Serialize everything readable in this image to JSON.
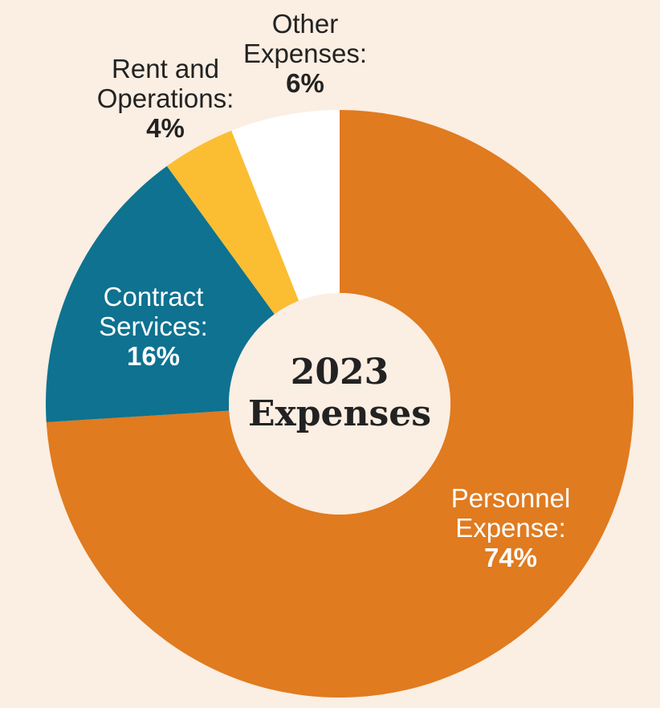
{
  "chart_data": {
    "type": "pie",
    "title_lines": [
      "2023",
      "Expenses"
    ],
    "slices": [
      {
        "label_lines": [
          "Personnel",
          "Expense:"
        ],
        "value": 74,
        "value_label": "74%",
        "color": "#e07b1f",
        "label_color": "#ffffff"
      },
      {
        "label_lines": [
          "Contract",
          "Services:"
        ],
        "value": 16,
        "value_label": "16%",
        "color": "#0e7290",
        "label_color": "#ffffff"
      },
      {
        "label_lines": [
          "Rent and",
          "Operations:"
        ],
        "value": 4,
        "value_label": "4%",
        "color": "#fbbd32",
        "label_color": "#222222"
      },
      {
        "label_lines": [
          "Other",
          "Expenses:"
        ],
        "value": 6,
        "value_label": "6%",
        "color": "#ffffff",
        "label_color": "#222222"
      }
    ],
    "donut": true,
    "legend": "none"
  }
}
